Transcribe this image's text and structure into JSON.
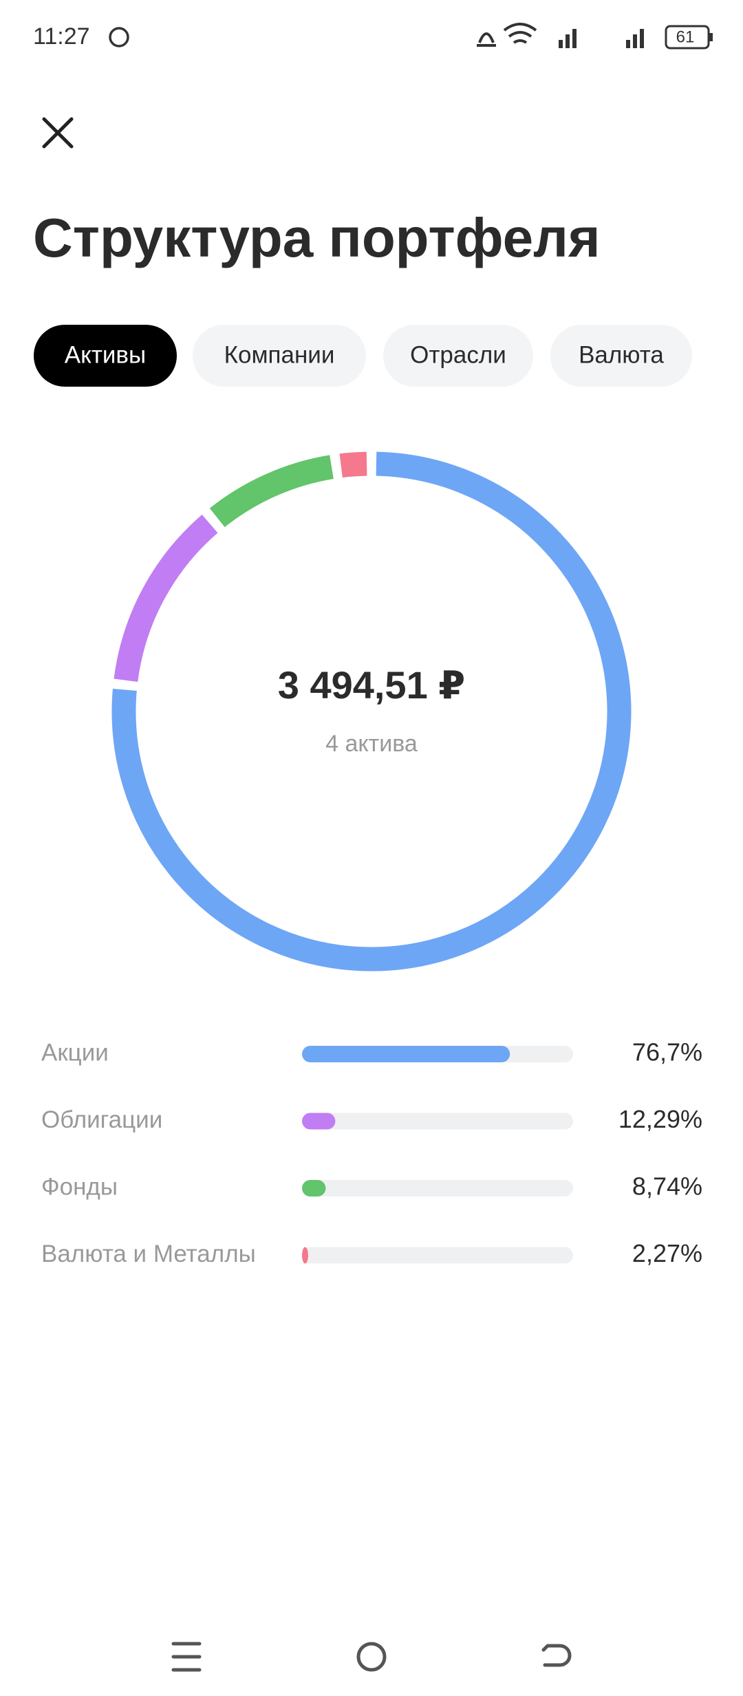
{
  "status_bar": {
    "time": "11:27",
    "battery": "61"
  },
  "header": {
    "title": "Структура портфеля"
  },
  "tabs": [
    "Активы",
    "Компании",
    "Отрасли",
    "Валюта"
  ],
  "chart_data": {
    "type": "pie",
    "donut": true,
    "center_value": "3 494,51 ₽",
    "center_label": "4 актива",
    "categories": [
      "Акции",
      "Облигации",
      "Фонды",
      "Валюта и Металлы"
    ],
    "values": [
      76.7,
      12.29,
      8.74,
      2.27
    ],
    "value_labels": [
      "76,7%",
      "12,29%",
      "8,74%",
      "2,27%"
    ],
    "colors": [
      "#6ea6f6",
      "#c17df4",
      "#62c46b",
      "#f6788d"
    ]
  }
}
